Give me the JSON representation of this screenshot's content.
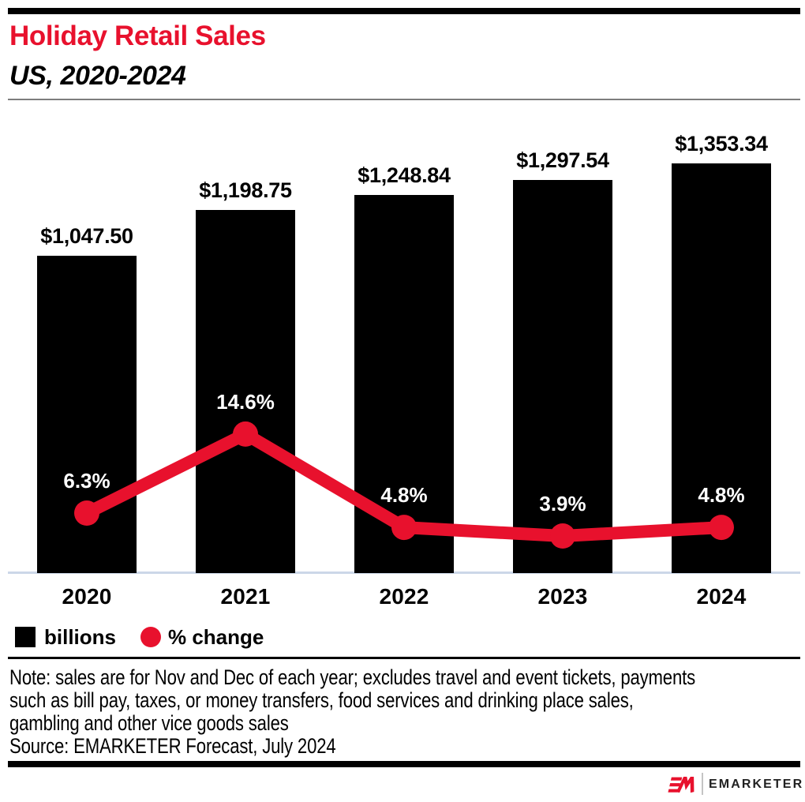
{
  "header": {
    "title": "Holiday Retail Sales",
    "subtitle": "US, 2020-2024"
  },
  "chart_data": {
    "type": "bar+line",
    "title": "Holiday Retail Sales",
    "subtitle": "US, 2020-2024",
    "categories": [
      "2020",
      "2021",
      "2022",
      "2023",
      "2024"
    ],
    "series": [
      {
        "name": "billions",
        "type": "bar",
        "color": "#000000",
        "values": [
          1047.5,
          1198.75,
          1248.84,
          1297.54,
          1353.34
        ],
        "labels": [
          "$1,047.50",
          "$1,198.75",
          "$1,248.84",
          "$1,297.54",
          "$1,353.34"
        ]
      },
      {
        "name": "% change",
        "type": "line",
        "color": "#e8112d",
        "values": [
          6.3,
          14.6,
          4.8,
          3.9,
          4.8
        ],
        "labels": [
          "6.3%",
          "14.6%",
          "4.8%",
          "3.9%",
          "4.8%"
        ]
      }
    ],
    "xlabel": "",
    "ylabel": "",
    "grid": false,
    "legend_position": "bottom",
    "baseline": 0
  },
  "legend": {
    "items": [
      {
        "label": "billions",
        "swatch": "square",
        "color": "#000000"
      },
      {
        "label": "% change",
        "swatch": "circle",
        "color": "#e8112d"
      }
    ]
  },
  "footnote": {
    "lines": [
      "Note: sales are for Nov and Dec of each year; excludes travel and event tickets, payments",
      "such as bill pay, taxes, or money transfers, food services and drinking place sales,",
      "gambling and other vice goods sales"
    ],
    "source": "Source: EMARKETER Forecast, July 2024"
  },
  "footer": {
    "brand": "EMARKETER"
  },
  "colors": {
    "accent_red": "#e8112d",
    "axis_line": "#ccd7e8",
    "bar_black": "#000000"
  }
}
